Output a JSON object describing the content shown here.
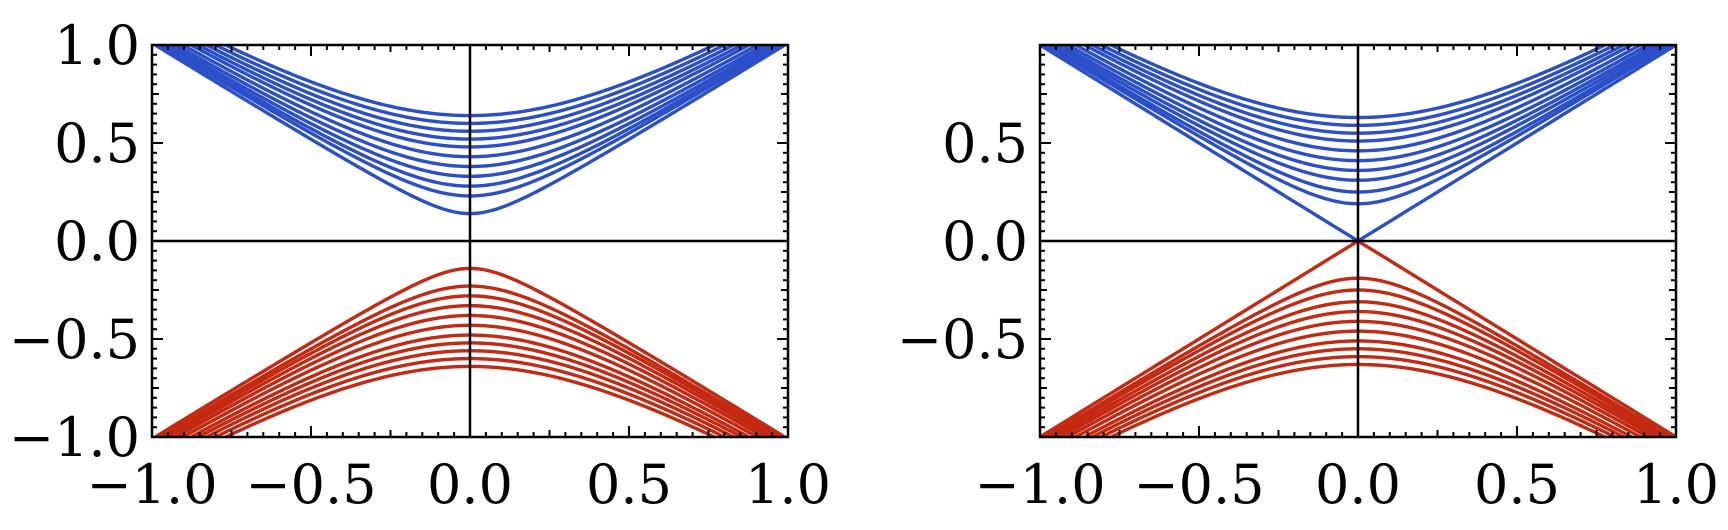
{
  "colors": {
    "upper_band": "#2a4fc8",
    "lower_band": "#c42a12",
    "axes": "#000000"
  },
  "chart_data": [
    {
      "type": "line",
      "title": "",
      "xlabel": "",
      "ylabel": "",
      "xlim": [
        -1.0,
        1.0
      ],
      "ylim": [
        -1.0,
        1.0
      ],
      "grid": false,
      "legend": "none",
      "x_ticks": [
        {
          "value": -1.0,
          "label": "−1.0"
        },
        {
          "value": -0.5,
          "label": "−0.5"
        },
        {
          "value": 0.0,
          "label": "0.0"
        },
        {
          "value": 0.5,
          "label": "0.5"
        },
        {
          "value": 1.0,
          "label": "1.0"
        }
      ],
      "y_ticks": [
        {
          "value": 1.0,
          "label": "1.0"
        },
        {
          "value": 0.5,
          "label": "0.5"
        },
        {
          "value": 0.0,
          "label": "0.0"
        },
        {
          "value": -0.5,
          "label": "−0.5"
        },
        {
          "value": -1.0,
          "label": "−1.0"
        }
      ],
      "series_formula": "y = ± sqrt(x^2 + gap^2)",
      "upper_band_gaps": [
        0.14,
        0.23,
        0.28,
        0.33,
        0.38,
        0.43,
        0.48,
        0.52,
        0.56,
        0.6,
        0.64
      ],
      "lower_band_gaps": [
        0.14,
        0.23,
        0.28,
        0.33,
        0.38,
        0.43,
        0.48,
        0.52,
        0.56,
        0.6,
        0.64
      ]
    },
    {
      "type": "line",
      "title": "",
      "xlabel": "",
      "ylabel": "",
      "xlim": [
        -1.0,
        1.0
      ],
      "ylim": [
        -1.0,
        1.0
      ],
      "grid": false,
      "legend": "none",
      "x_ticks": [
        {
          "value": -1.0,
          "label": "−1.0"
        },
        {
          "value": -0.5,
          "label": "−0.5"
        },
        {
          "value": 0.0,
          "label": "0.0"
        },
        {
          "value": 0.5,
          "label": "0.5"
        },
        {
          "value": 1.0,
          "label": "1.0"
        }
      ],
      "y_ticks": [
        {
          "value": 0.5,
          "label": "0.5"
        },
        {
          "value": 0.0,
          "label": "0.0"
        },
        {
          "value": -0.5,
          "label": "−0.5"
        }
      ],
      "series_formula": "y = ± sqrt(x^2 + gap^2)",
      "upper_band_gaps": [
        0.0,
        0.19,
        0.25,
        0.31,
        0.36,
        0.41,
        0.46,
        0.51,
        0.55,
        0.59,
        0.63
      ],
      "lower_band_gaps": [
        0.0,
        0.19,
        0.25,
        0.31,
        0.36,
        0.41,
        0.46,
        0.51,
        0.55,
        0.59,
        0.63
      ]
    }
  ]
}
